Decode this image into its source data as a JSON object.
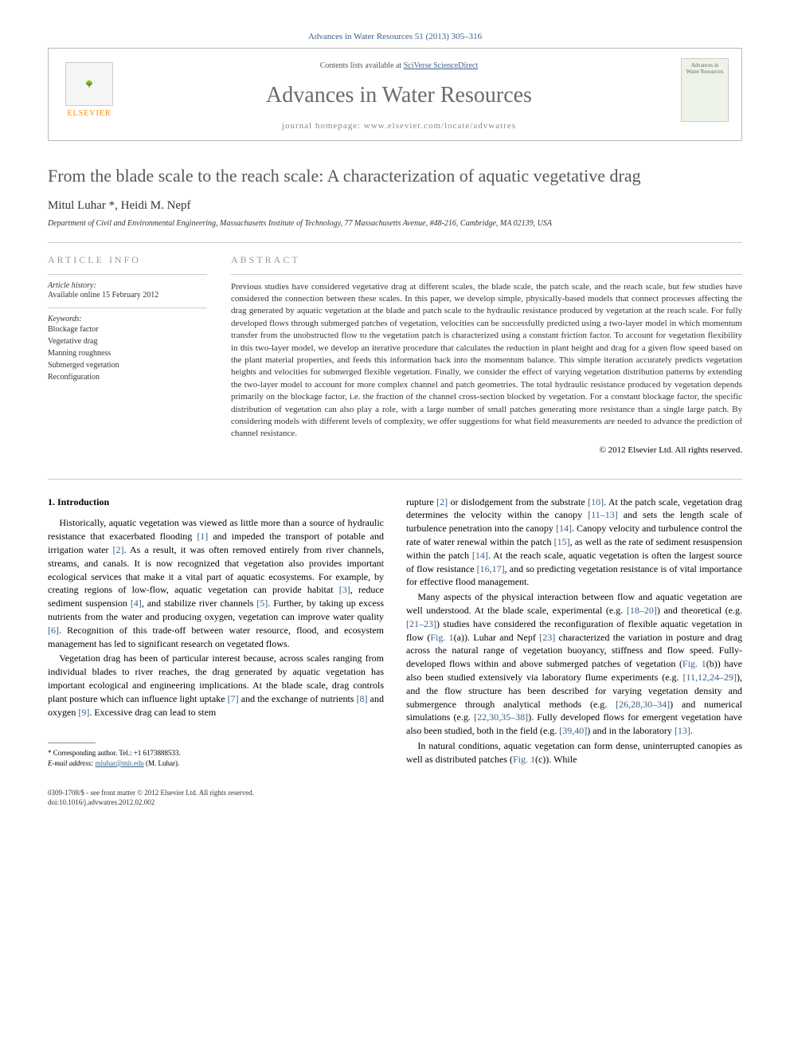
{
  "citation": "Advances in Water Resources 51 (2013) 305–316",
  "header": {
    "contents_prefix": "Contents lists available at ",
    "contents_link": "SciVerse ScienceDirect",
    "journal_name": "Advances in Water Resources",
    "homepage_prefix": "journal homepage: ",
    "homepage_url": "www.elsevier.com/locate/advwatres",
    "publisher_label": "ELSEVIER",
    "cover_text": "Advances in Water Resources"
  },
  "title": "From the blade scale to the reach scale: A characterization of aquatic vegetative drag",
  "authors": "Mitul Luhar *, Heidi M. Nepf",
  "affiliation": "Department of Civil and Environmental Engineering, Massachusetts Institute of Technology, 77 Massachusetts Avenue, #48-216, Cambridge, MA 02139, USA",
  "article_info": {
    "heading": "ARTICLE INFO",
    "history_label": "Article history:",
    "history_text": "Available online 15 February 2012",
    "keywords_label": "Keywords:",
    "keywords": [
      "Blockage factor",
      "Vegetative drag",
      "Manning roughness",
      "Submerged vegetation",
      "Reconfiguration"
    ]
  },
  "abstract": {
    "heading": "ABSTRACT",
    "text": "Previous studies have considered vegetative drag at different scales, the blade scale, the patch scale, and the reach scale, but few studies have considered the connection between these scales. In this paper, we develop simple, physically-based models that connect processes affecting the drag generated by aquatic vegetation at the blade and patch scale to the hydraulic resistance produced by vegetation at the reach scale. For fully developed flows through submerged patches of vegetation, velocities can be successfully predicted using a two-layer model in which momentum transfer from the unobstructed flow to the vegetation patch is characterized using a constant friction factor. To account for vegetation flexibility in this two-layer model, we develop an iterative procedure that calculates the reduction in plant height and drag for a given flow speed based on the plant material properties, and feeds this information back into the momentum balance. This simple iteration accurately predicts vegetation heights and velocities for submerged flexible vegetation. Finally, we consider the effect of varying vegetation distribution patterns by extending the two-layer model to account for more complex channel and patch geometries. The total hydraulic resistance produced by vegetation depends primarily on the blockage factor, i.e. the fraction of the channel cross-section blocked by vegetation. For a constant blockage factor, the specific distribution of vegetation can also play a role, with a large number of small patches generating more resistance than a single large patch. By considering models with different levels of complexity, we offer suggestions for what field measurements are needed to advance the prediction of channel resistance.",
    "copyright": "© 2012 Elsevier Ltd. All rights reserved."
  },
  "section1": {
    "heading": "1. Introduction",
    "para1_a": "Historically, aquatic vegetation was viewed as little more than a source of hydraulic resistance that exacerbated flooding ",
    "para1_b": " and impeded the transport of potable and irrigation water ",
    "para1_c": ". As a result, it was often removed entirely from river channels, streams, and canals. It is now recognized that vegetation also provides important ecological services that make it a vital part of aquatic ecosystems. For example, by creating regions of low-flow, aquatic vegetation can provide habitat ",
    "para1_d": ", reduce sediment suspension ",
    "para1_e": ", and stabilize river channels ",
    "para1_f": ". Further, by taking up excess nutrients from the water and producing oxygen, vegetation can improve water quality ",
    "para1_g": ". Recognition of this trade-off between water resource, flood, and ecosystem management has led to significant research on vegetated flows.",
    "para2_a": "Vegetation drag has been of particular interest because, across scales ranging from individual blades to river reaches, the drag generated by aquatic vegetation has important ecological and engineering implications. At the blade scale, drag controls plant posture which can influence light uptake ",
    "para2_b": " and the exchange of nutrients ",
    "para2_c": " and oxygen ",
    "para2_d": ". Excessive drag can lead to stem",
    "para3_a": "rupture ",
    "para3_b": " or dislodgement from the substrate ",
    "para3_c": ". At the patch scale, vegetation drag determines the velocity within the canopy ",
    "para3_d": " and sets the length scale of turbulence penetration into the canopy ",
    "para3_e": ". Canopy velocity and turbulence control the rate of water renewal within the patch ",
    "para3_f": ", as well as the rate of sediment resuspension within the patch ",
    "para3_g": ". At the reach scale, aquatic vegetation is often the largest source of flow resistance ",
    "para3_h": ", and so predicting vegetation resistance is of vital importance for effective flood management.",
    "para4_a": "Many aspects of the physical interaction between flow and aquatic vegetation are well understood. At the blade scale, experimental (e.g. ",
    "para4_b": ") and theoretical (e.g. ",
    "para4_c": ") studies have considered the reconfiguration of flexible aquatic vegetation in flow (",
    "para4_d": "(a)). Luhar and Nepf ",
    "para4_e": " characterized the variation in posture and drag across the natural range of vegetation buoyancy, stiffness and flow speed. Fully-developed flows within and above submerged patches of vegetation (",
    "para4_f": "(b)) have also been studied extensively via laboratory flume experiments (e.g. ",
    "para4_g": "), and the flow structure has been described for varying vegetation density and submergence through analytical methods (e.g. ",
    "para4_h": ") and numerical simulations (e.g. ",
    "para4_i": "). Fully developed flows for emergent vegetation have also been studied, both in the field (e.g. ",
    "para4_j": ") and in the laboratory ",
    "para4_k": ".",
    "para5_a": "In natural conditions, aquatic vegetation can form dense, uninterrupted canopies as well as distributed patches (",
    "para5_b": "(c)). While"
  },
  "refs": {
    "r1": "[1]",
    "r2": "[2]",
    "r3": "[3]",
    "r4": "[4]",
    "r5": "[5]",
    "r6": "[6]",
    "r7": "[7]",
    "r8": "[8]",
    "r9": "[9]",
    "r10": "[10]",
    "r11_13": "[11–13]",
    "r14": "[14]",
    "r15": "[15]",
    "r16_17": "[16,17]",
    "r18_20": "[18–20]",
    "r21_23": "[21–23]",
    "r23": "[23]",
    "r11_12_24_29": "[11,12,24–29]",
    "r26_28_30_34": "[26,28,30–34]",
    "r22_30_35_38": "[22,30,35–38]",
    "r39_40": "[39,40]",
    "r13": "[13]",
    "fig1": "Fig. 1"
  },
  "footnote": {
    "corr": "* Corresponding author. Tel.: +1 6173888533.",
    "email_label": "E-mail address: ",
    "email": "mluhar@mit.edu",
    "email_suffix": " (M. Luhar)."
  },
  "bottom": {
    "issn": "0309-1708/$ - see front matter © 2012 Elsevier Ltd. All rights reserved.",
    "doi": "doi:10.1016/j.advwatres.2012.02.002"
  },
  "colors": {
    "link": "#3a5f8a",
    "title_gray": "#585858",
    "journal_gray": "#6a6a6a",
    "elsevier_orange": "#ff8c00"
  }
}
